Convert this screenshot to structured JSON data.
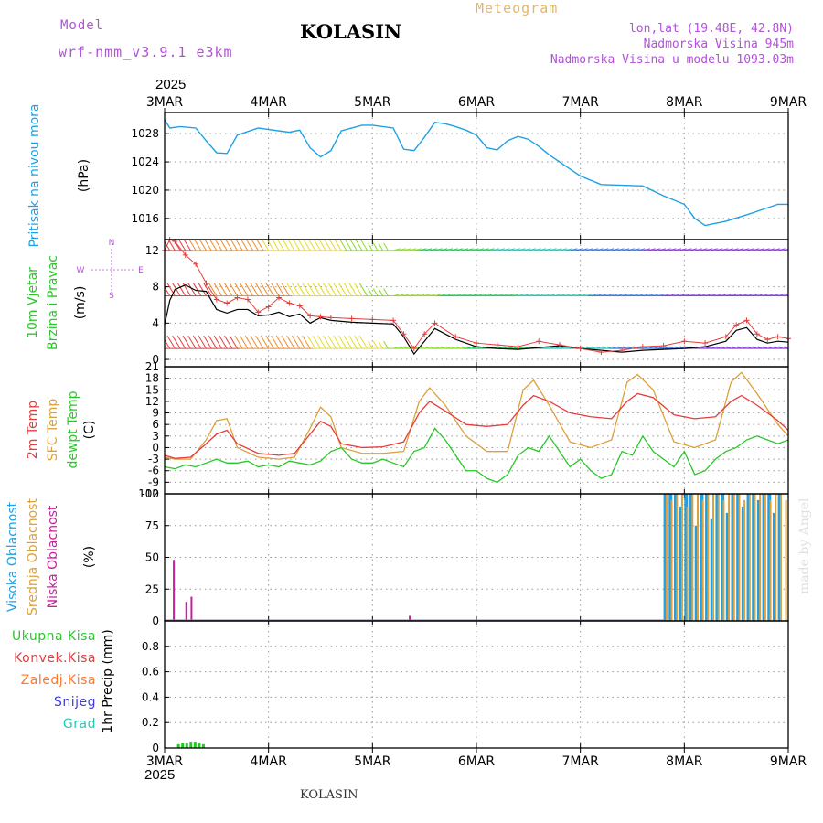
{
  "header": {
    "model_label": "Model",
    "model_name": "wrf-nmm_v3.9.1 e3km",
    "station": "KOLASIN",
    "title": "Meteogram",
    "lonlat": "lon,lat (19.48E, 42.8N)",
    "altitude": "Nadmorska Visina 945m",
    "model_altitude": "Nadmorska Visina u modelu 1093.03m",
    "year_top": "2025",
    "year_bottom": "2025",
    "footer": "KOLASIN",
    "credit": "made by Angel"
  },
  "colors": {
    "pressure": "#1ea0e6",
    "t2m": "#e63c3c",
    "sfc": "#dca03c",
    "dewpt": "#28c828",
    "high_cloud": "#1ea0e6",
    "mid_cloud": "#dca03c",
    "low_cloud": "#c81e9b",
    "precip": "#28c828",
    "gust": "#e63c3c",
    "wind": "#000000"
  },
  "chart_data": [
    {
      "type": "line",
      "panel": "pressure",
      "ylabel_name": "Pritisak na nivou mora",
      "ylabel_unit": "(hPa)",
      "ylim": [
        1013,
        1031
      ],
      "yticks": [
        1016,
        1020,
        1024,
        1028
      ],
      "x_days": [
        "3MAR",
        "4MAR",
        "5MAR",
        "6MAR",
        "7MAR",
        "8MAR",
        "9MAR"
      ],
      "series": [
        {
          "name": "MSLP",
          "x": [
            0,
            0.05,
            0.15,
            0.3,
            0.4,
            0.5,
            0.6,
            0.7,
            0.9,
            1.0,
            1.2,
            1.3,
            1.4,
            1.5,
            1.6,
            1.7,
            1.9,
            2.0,
            2.2,
            2.3,
            2.4,
            2.5,
            2.6,
            2.7,
            2.8,
            2.9,
            3.0,
            3.1,
            3.2,
            3.3,
            3.4,
            3.5,
            3.6,
            3.7,
            3.8,
            3.9,
            4.0,
            4.2,
            4.4,
            4.6,
            4.8,
            5.0,
            5.1,
            5.2,
            5.4,
            5.6,
            5.7,
            5.8,
            5.9,
            6.0
          ],
          "values": [
            1030,
            1028.8,
            1029,
            1028.8,
            1027,
            1025.3,
            1025.2,
            1027.8,
            1028.8,
            1028.6,
            1028.2,
            1028.5,
            1026,
            1024.7,
            1025.6,
            1028.4,
            1029.2,
            1029.2,
            1028.8,
            1025.8,
            1025.6,
            1027.5,
            1029.6,
            1029.4,
            1029,
            1028.5,
            1027.8,
            1026,
            1025.7,
            1027,
            1027.6,
            1027.2,
            1026.2,
            1025,
            1024,
            1023,
            1022,
            1020.8,
            1020.7,
            1020.6,
            1019.2,
            1018,
            1016,
            1015,
            1015.6,
            1016.5,
            1017,
            1017.5,
            1018,
            1018
          ]
        }
      ]
    },
    {
      "type": "line",
      "panel": "wind",
      "ylabel_name": "10m Vjetar",
      "ylabel_name2": "Brzina i Pravac",
      "ylabel_unit": "(m/s)",
      "compass": {
        "n": "N",
        "w": "W",
        "e": "E",
        "s": "S"
      },
      "ylim": [
        -0.8,
        13.2
      ],
      "yticks": [
        0,
        4,
        8,
        12
      ],
      "series": [
        {
          "name": "wind speed",
          "x": [
            0,
            0.05,
            0.1,
            0.2,
            0.3,
            0.4,
            0.5,
            0.6,
            0.7,
            0.8,
            0.9,
            1.0,
            1.1,
            1.2,
            1.3,
            1.4,
            1.5,
            1.6,
            1.8,
            2.0,
            2.2,
            2.3,
            2.4,
            2.5,
            2.6,
            2.8,
            3.0,
            3.2,
            3.4,
            3.6,
            3.8,
            4.0,
            4.2,
            4.4,
            4.6,
            4.8,
            5.0,
            5.2,
            5.4,
            5.5,
            5.6,
            5.7,
            5.8,
            5.9,
            6.0
          ],
          "values": [
            3.8,
            6.5,
            7.7,
            8.2,
            7.6,
            7.5,
            5.5,
            5.1,
            5.5,
            5.5,
            4.8,
            4.9,
            5.2,
            4.7,
            5.0,
            4.0,
            4.6,
            4.3,
            4.1,
            4.0,
            3.9,
            2.5,
            0.6,
            2.0,
            3.4,
            2.2,
            1.4,
            1.2,
            1.1,
            1.3,
            1.5,
            1.2,
            1.0,
            0.8,
            1.0,
            1.1,
            1.2,
            1.4,
            2.0,
            3.2,
            3.5,
            2.2,
            1.8,
            2.0,
            1.9
          ]
        },
        {
          "name": "gust",
          "x": [
            0,
            0.05,
            0.1,
            0.2,
            0.3,
            0.4,
            0.5,
            0.6,
            0.7,
            0.8,
            0.9,
            1.0,
            1.1,
            1.2,
            1.3,
            1.4,
            1.5,
            1.6,
            1.8,
            2.0,
            2.2,
            2.3,
            2.4,
            2.5,
            2.6,
            2.8,
            3.0,
            3.2,
            3.4,
            3.6,
            3.8,
            4.0,
            4.2,
            4.4,
            4.6,
            4.8,
            5.0,
            5.2,
            5.4,
            5.5,
            5.6,
            5.7,
            5.8,
            5.9,
            6.0
          ],
          "values": [
            12,
            13.2,
            13.0,
            11.5,
            10.5,
            8.4,
            6.6,
            6.2,
            6.8,
            6.6,
            5.2,
            5.8,
            6.8,
            6.2,
            5.9,
            4.8,
            4.7,
            4.6,
            4.5,
            4.4,
            4.3,
            2.8,
            1.2,
            2.8,
            4.0,
            2.5,
            1.8,
            1.6,
            1.4,
            2.0,
            1.6,
            1.2,
            0.8,
            1.0,
            1.4,
            1.5,
            2.0,
            1.8,
            2.5,
            3.8,
            4.3,
            2.8,
            2.2,
            2.5,
            2.3
          ]
        }
      ]
    },
    {
      "type": "line",
      "panel": "temperature",
      "ylabel_name": "2m Temp",
      "ylabel_name2": "SFC Temp",
      "ylabel_name3": "dewpt Temp",
      "ylabel_unit": "(C)",
      "ylim": [
        -12,
        21
      ],
      "yticks": [
        -12,
        -9,
        -6,
        -3,
        0,
        3,
        6,
        9,
        12,
        15,
        18,
        21
      ],
      "series": [
        {
          "name": "2m Temp",
          "x": [
            0,
            0.1,
            0.25,
            0.4,
            0.5,
            0.6,
            0.7,
            0.9,
            1.1,
            1.25,
            1.4,
            1.5,
            1.6,
            1.7,
            1.9,
            2.1,
            2.3,
            2.45,
            2.55,
            2.7,
            2.9,
            3.1,
            3.3,
            3.45,
            3.55,
            3.7,
            3.9,
            4.1,
            4.3,
            4.45,
            4.55,
            4.7,
            4.9,
            5.1,
            5.3,
            5.45,
            5.55,
            5.7,
            5.9,
            6.0
          ],
          "values": [
            -2,
            -2.8,
            -2.5,
            1,
            3.5,
            4.5,
            1,
            -1.5,
            -2,
            -1.5,
            3.5,
            6.8,
            5.5,
            1,
            0,
            0.2,
            1.5,
            9,
            12,
            9.5,
            6,
            5.5,
            6,
            11,
            13.5,
            12,
            9,
            8,
            7.5,
            12,
            14,
            13,
            8.5,
            7.5,
            8,
            12,
            13.5,
            11,
            7,
            4.5
          ]
        },
        {
          "name": "SFC Temp",
          "x": [
            0,
            0.1,
            0.25,
            0.4,
            0.5,
            0.6,
            0.7,
            0.9,
            1.1,
            1.25,
            1.4,
            1.5,
            1.6,
            1.7,
            1.9,
            2.1,
            2.3,
            2.45,
            2.55,
            2.7,
            2.9,
            3.1,
            3.3,
            3.45,
            3.55,
            3.7,
            3.9,
            4.1,
            4.3,
            4.45,
            4.55,
            4.7,
            4.9,
            5.1,
            5.3,
            5.45,
            5.55,
            5.7,
            5.9,
            6.0
          ],
          "values": [
            -2.5,
            -3,
            -3,
            2,
            7,
            7.5,
            0,
            -2.5,
            -3,
            -2.5,
            5,
            10.5,
            8,
            0,
            -1.5,
            -1.5,
            -1,
            12,
            15.5,
            11,
            3,
            -1,
            -1,
            15,
            17.5,
            11,
            1.5,
            0,
            2,
            17,
            19,
            15,
            1.5,
            0,
            2,
            17,
            19.5,
            14,
            6,
            3
          ]
        },
        {
          "name": "dewpt Temp",
          "x": [
            0,
            0.1,
            0.2,
            0.3,
            0.4,
            0.5,
            0.6,
            0.7,
            0.8,
            0.9,
            1.0,
            1.1,
            1.2,
            1.3,
            1.4,
            1.5,
            1.6,
            1.7,
            1.8,
            1.9,
            2.0,
            2.1,
            2.2,
            2.3,
            2.4,
            2.5,
            2.6,
            2.7,
            2.8,
            2.9,
            3.0,
            3.1,
            3.2,
            3.3,
            3.4,
            3.5,
            3.6,
            3.7,
            3.8,
            3.9,
            4.0,
            4.1,
            4.2,
            4.3,
            4.4,
            4.5,
            4.6,
            4.7,
            4.8,
            4.9,
            5.0,
            5.1,
            5.2,
            5.3,
            5.4,
            5.5,
            5.6,
            5.7,
            5.8,
            5.9,
            6.0
          ],
          "values": [
            -5,
            -5.5,
            -4.5,
            -5,
            -4,
            -3,
            -4,
            -4,
            -3.5,
            -5,
            -4.5,
            -5,
            -3.5,
            -4,
            -4.5,
            -3.5,
            -1,
            0,
            -3,
            -4,
            -4,
            -3,
            -4,
            -5,
            -1,
            0,
            5,
            2,
            -2,
            -6,
            -6,
            -8,
            -9,
            -7,
            -2,
            0,
            -1,
            3,
            -1,
            -5,
            -3,
            -6,
            -8,
            -7,
            -1,
            -2,
            3,
            -1,
            -3,
            -5,
            -1,
            -7,
            -6,
            -3,
            -1,
            0,
            2,
            3,
            2,
            1,
            2
          ]
        }
      ]
    },
    {
      "type": "bar",
      "panel": "cloud",
      "ylabel_name": "Visoka Oblacnost",
      "ylabel_name2": "Srednja Oblacnost",
      "ylabel_name3": "Niska Oblacnost",
      "ylabel_unit": "(%)",
      "ylim": [
        0,
        100
      ],
      "yticks": [
        0,
        25,
        50,
        75,
        100
      ],
      "series": [
        {
          "name": "Niska Oblacnost",
          "x": [
            0.08,
            0.2,
            0.25,
            2.35
          ],
          "values": [
            48,
            15,
            19,
            4
          ]
        },
        {
          "name": "Visoka Oblacnost",
          "x": [
            4.8,
            4.85,
            4.9,
            4.95,
            5.0,
            5.05,
            5.1,
            5.15,
            5.2,
            5.25,
            5.3,
            5.35,
            5.4,
            5.45,
            5.5,
            5.55,
            5.6,
            5.65,
            5.7,
            5.75,
            5.8,
            5.85,
            5.9
          ],
          "values": [
            100,
            100,
            100,
            90,
            100,
            100,
            75,
            100,
            100,
            80,
            100,
            100,
            85,
            100,
            100,
            90,
            100,
            100,
            95,
            100,
            100,
            85,
            100
          ]
        },
        {
          "name": "Srednja Oblacnost",
          "x": [
            4.82,
            4.87,
            4.92,
            4.97,
            5.02,
            5.07,
            5.12,
            5.17,
            5.22,
            5.27,
            5.32,
            5.37,
            5.42,
            5.47,
            5.52,
            5.57,
            5.62,
            5.67,
            5.72,
            5.77,
            5.82,
            5.87,
            5.92,
            5.97
          ],
          "values": [
            100,
            95,
            100,
            100,
            90,
            100,
            100,
            95,
            100,
            100,
            100,
            95,
            100,
            100,
            100,
            95,
            100,
            100,
            100,
            100,
            95,
            100,
            100,
            95
          ]
        }
      ]
    },
    {
      "type": "bar",
      "panel": "precip",
      "ylabel_name": "1hr Precip (mm)",
      "legend": [
        "Ukupna Kisa",
        "Konvek.Kisa",
        "Zaledj.Kisa",
        "Snijeg",
        "Grad"
      ],
      "legend_colors": [
        "#28c828",
        "#e63c3c",
        "#ff7828",
        "#3c3cdc",
        "#28c8b4"
      ],
      "ylim": [
        0,
        1
      ],
      "yticks": [
        0,
        0.2,
        0.4,
        0.6,
        0.8
      ],
      "series": [
        {
          "name": "Ukupna Kisa",
          "x": [
            0.12,
            0.16,
            0.2,
            0.24,
            0.28,
            0.32,
            0.36
          ],
          "values": [
            0.03,
            0.04,
            0.04,
            0.05,
            0.05,
            0.04,
            0.03
          ]
        }
      ]
    }
  ]
}
